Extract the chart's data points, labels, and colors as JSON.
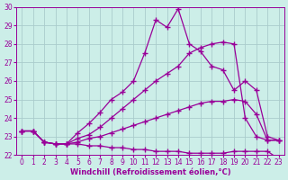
{
  "background_color": "#cceee8",
  "grid_color": "#aacccc",
  "line_color": "#990099",
  "xlim": [
    -0.5,
    23.5
  ],
  "ylim": [
    22,
    30
  ],
  "xlabel": "Windchill (Refroidissement éolien,°C)",
  "xticks": [
    0,
    1,
    2,
    3,
    4,
    5,
    6,
    7,
    8,
    9,
    10,
    11,
    12,
    13,
    14,
    15,
    16,
    17,
    18,
    19,
    20,
    21,
    22,
    23
  ],
  "yticks": [
    22,
    23,
    24,
    25,
    26,
    27,
    28,
    29,
    30
  ],
  "series": [
    [
      23.3,
      23.3,
      22.7,
      22.6,
      22.6,
      23.2,
      23.7,
      24.3,
      25.0,
      25.4,
      26.0,
      27.5,
      29.3,
      28.9,
      29.9,
      28.0,
      27.6,
      26.8,
      26.6,
      25.5,
      26.0,
      25.5,
      23.0,
      22.8
    ],
    [
      23.3,
      23.3,
      22.7,
      22.6,
      22.6,
      22.9,
      23.1,
      23.5,
      24.0,
      24.5,
      25.0,
      25.5,
      26.0,
      26.4,
      26.8,
      27.5,
      27.8,
      28.0,
      28.1,
      28.0,
      24.0,
      23.0,
      22.8,
      22.8
    ],
    [
      23.3,
      23.3,
      22.7,
      22.6,
      22.6,
      22.6,
      22.5,
      22.5,
      22.4,
      22.4,
      22.3,
      22.3,
      22.2,
      22.2,
      22.2,
      22.1,
      22.1,
      22.1,
      22.1,
      22.2,
      22.2,
      22.2,
      22.2,
      21.8
    ],
    [
      23.3,
      23.3,
      22.7,
      22.6,
      22.6,
      22.7,
      22.9,
      23.0,
      23.2,
      23.4,
      23.6,
      23.8,
      24.0,
      24.2,
      24.4,
      24.6,
      24.8,
      24.9,
      24.9,
      25.0,
      24.9,
      24.2,
      22.8,
      22.8
    ]
  ],
  "marker": "+",
  "markersize": 4,
  "markeredgewidth": 1.0,
  "linewidth": 0.9,
  "xlabel_fontsize": 6,
  "tick_fontsize": 5.5,
  "figwidth": 3.2,
  "figheight": 2.0,
  "dpi": 100
}
